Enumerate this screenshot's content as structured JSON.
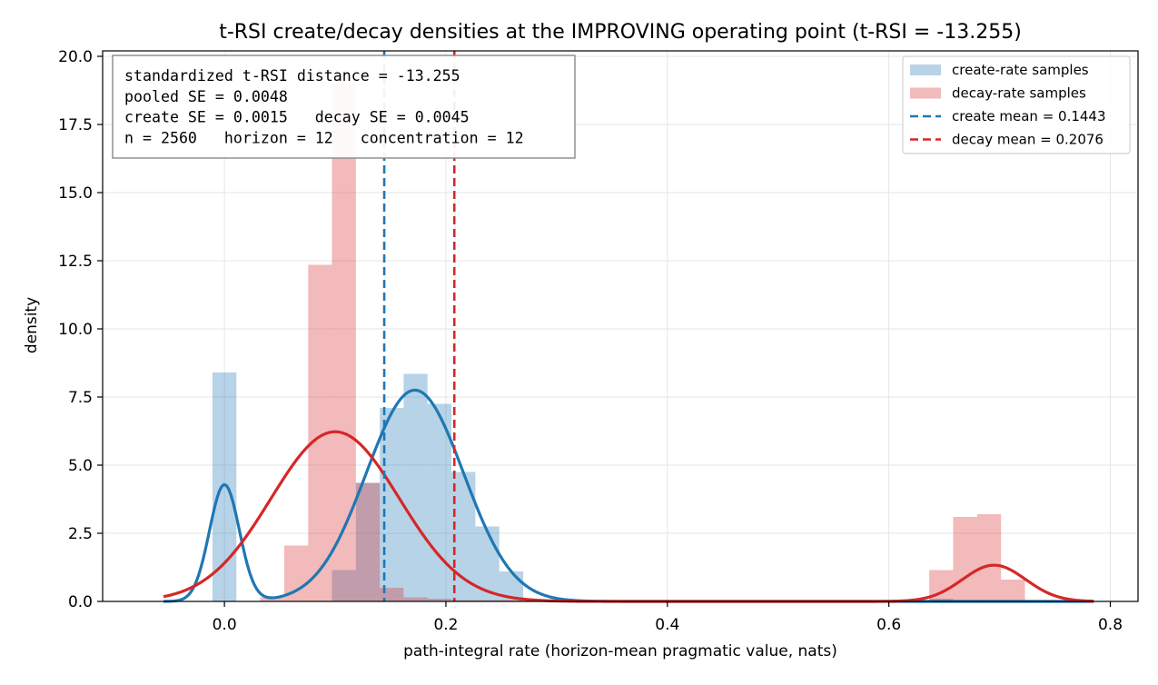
{
  "chart_data": {
    "type": "bar",
    "title": "t-RSI create/decay densities at the IMPROVING operating point (t-RSI = -13.255)",
    "xlabel": "path-integral rate (horizon-mean pragmatic value, nats)",
    "ylabel": "density",
    "xlim": [
      -0.11,
      0.825
    ],
    "ylim": [
      0,
      20.2
    ],
    "xticks": [
      0.0,
      0.2,
      0.4,
      0.6,
      0.8
    ],
    "xtick_labels": [
      "0.0",
      "0.2",
      "0.4",
      "0.6",
      "0.8"
    ],
    "yticks": [
      0,
      2.5,
      5,
      7.5,
      10,
      12.5,
      15,
      17.5,
      20
    ],
    "ytick_labels": [
      "0.0",
      "2.5",
      "5.0",
      "7.5",
      "10.0",
      "12.5",
      "15.0",
      "17.5",
      "20.0"
    ],
    "grid": true,
    "legend_position": "top-right",
    "stats_box": [
      "standardized t-RSI distance = -13.255",
      "pooled SE = 0.0048",
      "create SE = 0.0015   decay SE = 0.0045",
      "n = 2560   horizon = 12   concentration = 12"
    ],
    "colors": {
      "create": "#1f77b4",
      "decay": "#d62728",
      "create_hist": "#1f77b4",
      "decay_hist": "#d62728"
    },
    "histograms": [
      {
        "name": "create-rate samples",
        "color": "#1f77b4",
        "alpha": 0.32,
        "bin_edges": [
          -0.0108,
          0.0108,
          0.0971,
          0.1187,
          0.1403,
          0.1618,
          0.1834,
          0.205,
          0.2266,
          0.2482,
          0.2698,
          0.6365,
          0.6581,
          0.6797
        ],
        "values": [
          8.4,
          0,
          1.15,
          4.35,
          7.1,
          8.35,
          7.25,
          4.75,
          2.75,
          1.1,
          0,
          0.1,
          0.05
        ]
      },
      {
        "name": "decay-rate samples",
        "color": "#d62728",
        "alpha": 0.32,
        "bin_edges": [
          0.0324,
          0.054,
          0.0756,
          0.0971,
          0.1187,
          0.1403,
          0.1618,
          0.1834,
          0.205,
          0.2266,
          0.2482,
          0.2698,
          0.6365,
          0.6581,
          0.6797,
          0.7013,
          0.7229,
          0.7445
        ],
        "values": [
          0.15,
          2.05,
          12.35,
          19.0,
          4.35,
          0.5,
          0.15,
          0.1,
          0.05,
          0.05,
          0.05,
          0,
          1.15,
          3.1,
          3.2,
          0.8,
          0.05
        ]
      }
    ],
    "curves": [
      {
        "name": "create density",
        "color": "#1f77b4",
        "x_range": [
          -0.055,
          0.785
        ],
        "components": [
          {
            "weight": 0.145,
            "mean": 0.0,
            "sd": 0.0135
          },
          {
            "weight": 0.855,
            "mean": 0.172,
            "sd": 0.044
          }
        ]
      },
      {
        "name": "decay density",
        "color": "#d62728",
        "x_range": [
          -0.055,
          0.785
        ],
        "components": [
          {
            "weight": 0.905,
            "mean": 0.1,
            "sd": 0.058
          },
          {
            "weight": 0.095,
            "mean": 0.695,
            "sd": 0.0285
          }
        ]
      }
    ],
    "mean_lines": [
      {
        "name": "create mean = 0.1443",
        "value": 0.1443,
        "color": "#1f77b4"
      },
      {
        "name": "decay mean = 0.2076",
        "value": 0.2076,
        "color": "#d62728"
      }
    ],
    "legend": [
      {
        "label": "create-rate samples",
        "kind": "patch",
        "color": "#1f77b4"
      },
      {
        "label": "decay-rate samples",
        "kind": "patch",
        "color": "#d62728"
      },
      {
        "label": "create mean = 0.1443",
        "kind": "dashed",
        "color": "#1f77b4"
      },
      {
        "label": "decay mean = 0.2076",
        "kind": "dashed",
        "color": "#d62728"
      }
    ]
  }
}
